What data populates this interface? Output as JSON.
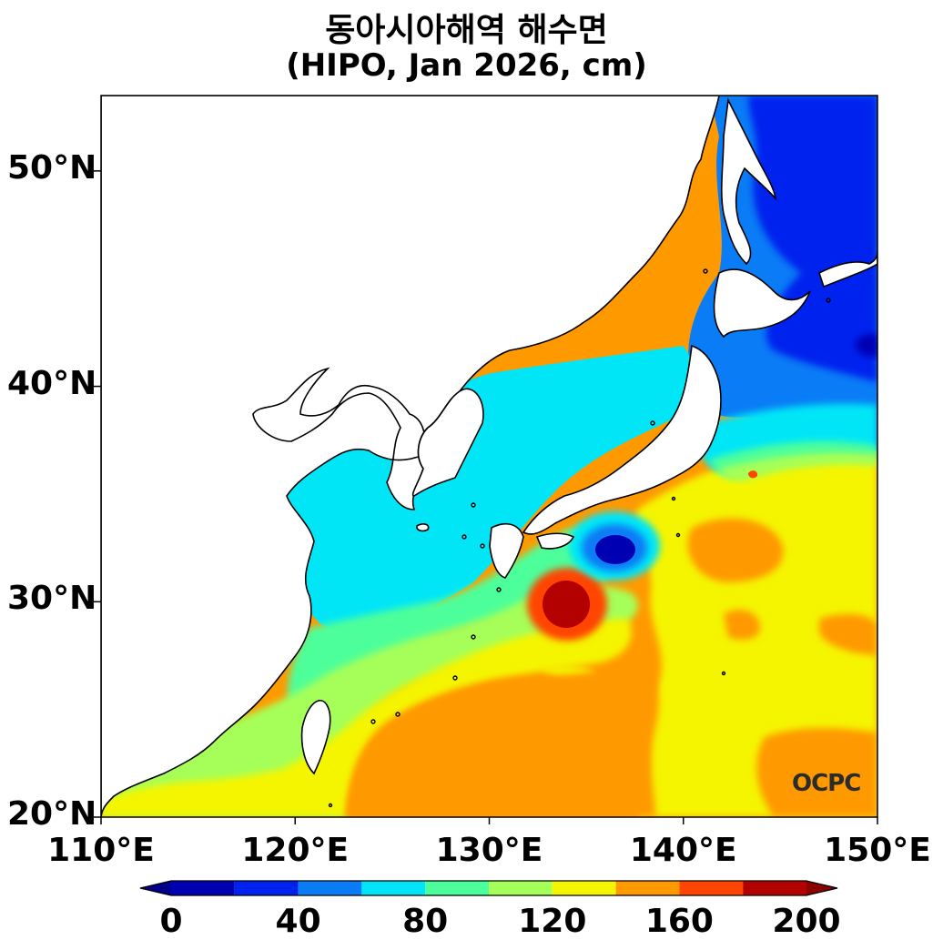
{
  "title": "동아시아해역 해수면",
  "subtitle": "(HIPO, Jan 2026, cm)",
  "logo_text": "OCPC",
  "map": {
    "lon_range": [
      110,
      150
    ],
    "lat_range": [
      20,
      53.5
    ],
    "x_ticks": [
      {
        "value": 110,
        "label": "110°E"
      },
      {
        "value": 120,
        "label": "120°E"
      },
      {
        "value": 130,
        "label": "130°E"
      },
      {
        "value": 140,
        "label": "140°E"
      },
      {
        "value": 150,
        "label": "150°E"
      }
    ],
    "y_ticks": [
      {
        "value": 20,
        "label": "20°N"
      },
      {
        "value": 30,
        "label": "30°N"
      },
      {
        "value": 40,
        "label": "40°N"
      },
      {
        "value": 50,
        "label": "50°N"
      }
    ]
  },
  "colorbar": {
    "min": 0,
    "max": 200,
    "step": 20,
    "colors": [
      "#0000b3",
      "#0022ee",
      "#0a7cf6",
      "#00e6f7",
      "#4dff9a",
      "#a5ff59",
      "#f5f500",
      "#ff9900",
      "#ff4500",
      "#b30000"
    ],
    "under_color": "#00008b",
    "over_color": "#8b0000",
    "labels": [
      {
        "value": 0,
        "label": "0"
      },
      {
        "value": 40,
        "label": "40"
      },
      {
        "value": 80,
        "label": "80"
      },
      {
        "value": 120,
        "label": "120"
      },
      {
        "value": 160,
        "label": "160"
      },
      {
        "value": 200,
        "label": "200"
      }
    ]
  }
}
